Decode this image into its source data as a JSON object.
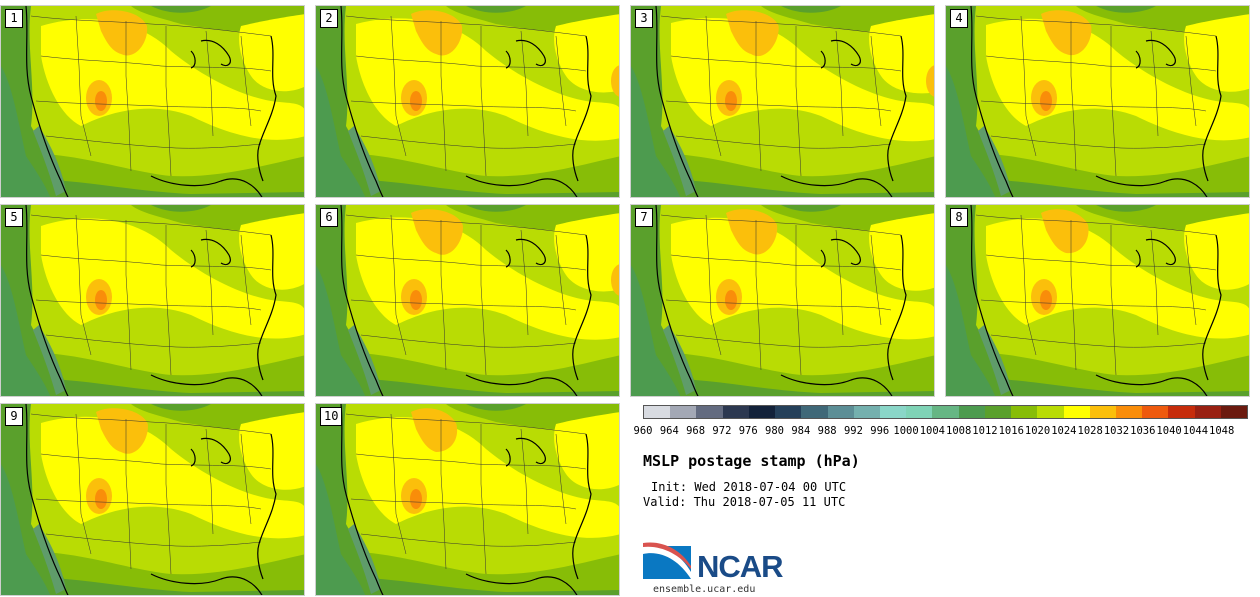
{
  "panels": [
    {
      "label": "1",
      "north_high": 1.0,
      "bias": 0.0
    },
    {
      "label": "2",
      "north_high": 1.0,
      "bias": 0.1
    },
    {
      "label": "3",
      "north_high": 1.2,
      "bias": 0.15
    },
    {
      "label": "4",
      "north_high": 0.9,
      "bias": 0.05
    },
    {
      "label": "5",
      "north_high": 0.2,
      "bias": -0.05
    },
    {
      "label": "6",
      "north_high": 1.1,
      "bias": 0.1
    },
    {
      "label": "7",
      "north_high": 1.0,
      "bias": 0.05
    },
    {
      "label": "8",
      "north_high": 0.5,
      "bias": -0.05
    },
    {
      "label": "9",
      "north_high": 1.1,
      "bias": 0.05
    },
    {
      "label": "10",
      "north_high": 0.3,
      "bias": 0.0
    }
  ],
  "legend": {
    "colors": [
      "#d8dbe1",
      "#a3a8b5",
      "#636b80",
      "#2c3850",
      "#13223a",
      "#25405a",
      "#3f6878",
      "#5c8e96",
      "#74b0ae",
      "#8ad6c8",
      "#7fd3b6",
      "#66b684",
      "#4d9b4f",
      "#5aa02c",
      "#87bd07",
      "#b9dc04",
      "#ffff00",
      "#fbbf0b",
      "#f98d0a",
      "#ee5a0e",
      "#c62c0b",
      "#992012",
      "#6b1a0f"
    ],
    "ticks": [
      "960",
      "964",
      "968",
      "972",
      "976",
      "980",
      "984",
      "988",
      "992",
      "996",
      "1000",
      "1004",
      "1008",
      "1012",
      "1016",
      "1020",
      "1024",
      "1028",
      "1032",
      "1036",
      "1040",
      "1044",
      "1048"
    ]
  },
  "title": "MSLP postage stamp (hPa)",
  "init": "Init: Wed 2018-07-04 00 UTC",
  "valid": "Valid: Thu 2018-07-05 11 UTC",
  "logo": {
    "name": "NCAR",
    "url": "ensemble.ucar.edu"
  }
}
